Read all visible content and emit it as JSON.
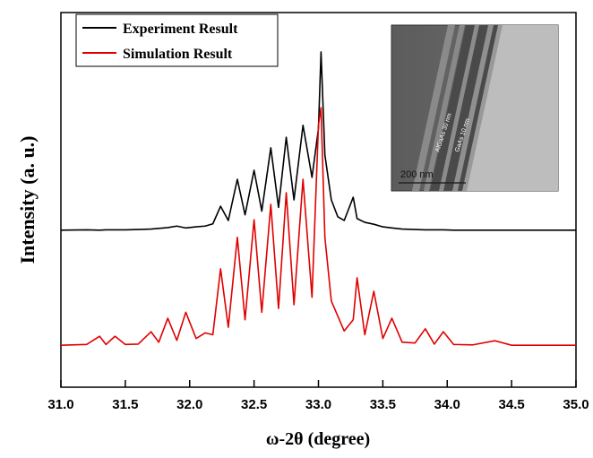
{
  "chart_data": {
    "type": "line",
    "xlabel": "ω-2θ (degree)",
    "ylabel": "Intensity (a. u.)",
    "xlim": [
      31.0,
      35.0
    ],
    "ylim": [
      0,
      10
    ],
    "xticks": [
      {
        "value": 31.0,
        "label": "31.0"
      },
      {
        "value": 31.5,
        "label": "31.5"
      },
      {
        "value": 32.0,
        "label": "32.0"
      },
      {
        "value": 32.5,
        "label": "32.5"
      },
      {
        "value": 33.0,
        "label": "33.0"
      },
      {
        "value": 33.5,
        "label": "33.5"
      },
      {
        "value": 34.0,
        "label": "34.0"
      },
      {
        "value": 34.5,
        "label": "34.5"
      },
      {
        "value": 35.0,
        "label": "35.0"
      }
    ],
    "legend": "upper left",
    "x": [
      31.0,
      31.2,
      31.3,
      31.35,
      31.42,
      31.5,
      31.6,
      31.7,
      31.76,
      31.83,
      31.9,
      31.97,
      32.05,
      32.12,
      32.18,
      32.24,
      32.3,
      32.37,
      32.43,
      32.5,
      32.56,
      32.63,
      32.69,
      32.75,
      32.81,
      32.88,
      32.95,
      33.0,
      33.02,
      33.05,
      33.1,
      33.15,
      33.2,
      33.27,
      33.3,
      33.36,
      33.43,
      33.5,
      33.57,
      33.65,
      33.75,
      33.83,
      33.9,
      33.97,
      34.05,
      34.2,
      34.37,
      34.5,
      34.7,
      35.0
    ],
    "series": [
      {
        "name": "Experiment Result",
        "color": "#000000",
        "values": [
          4.19,
          4.2,
          4.19,
          4.2,
          4.2,
          4.2,
          4.21,
          4.22,
          4.24,
          4.26,
          4.3,
          4.25,
          4.28,
          4.3,
          4.36,
          4.83,
          4.45,
          5.55,
          4.6,
          5.79,
          4.7,
          6.39,
          4.8,
          6.67,
          5.0,
          6.99,
          5.6,
          6.9,
          8.95,
          6.2,
          5.0,
          4.55,
          4.45,
          5.07,
          4.5,
          4.4,
          4.35,
          4.28,
          4.25,
          4.22,
          4.21,
          4.2,
          4.2,
          4.2,
          4.19,
          4.19,
          4.19,
          4.19,
          4.19,
          4.19
        ]
      },
      {
        "name": "Simulation Result",
        "color": "#e00000",
        "values": [
          1.12,
          1.14,
          1.36,
          1.14,
          1.36,
          1.14,
          1.15,
          1.48,
          1.2,
          1.84,
          1.25,
          2.0,
          1.3,
          1.45,
          1.4,
          3.16,
          1.6,
          4.0,
          1.8,
          4.47,
          2.0,
          4.88,
          2.1,
          5.19,
          2.2,
          5.55,
          2.4,
          6.99,
          7.46,
          4.0,
          2.3,
          1.9,
          1.5,
          1.8,
          2.92,
          1.4,
          2.56,
          1.3,
          1.84,
          1.2,
          1.18,
          1.56,
          1.15,
          1.48,
          1.14,
          1.13,
          1.24,
          1.12,
          1.12,
          1.12
        ]
      }
    ],
    "inset": {
      "scale_bar": "200 nm",
      "layer_labels": [
        "AlGaAs 30 nm",
        "GaAs 10 nm"
      ]
    }
  }
}
